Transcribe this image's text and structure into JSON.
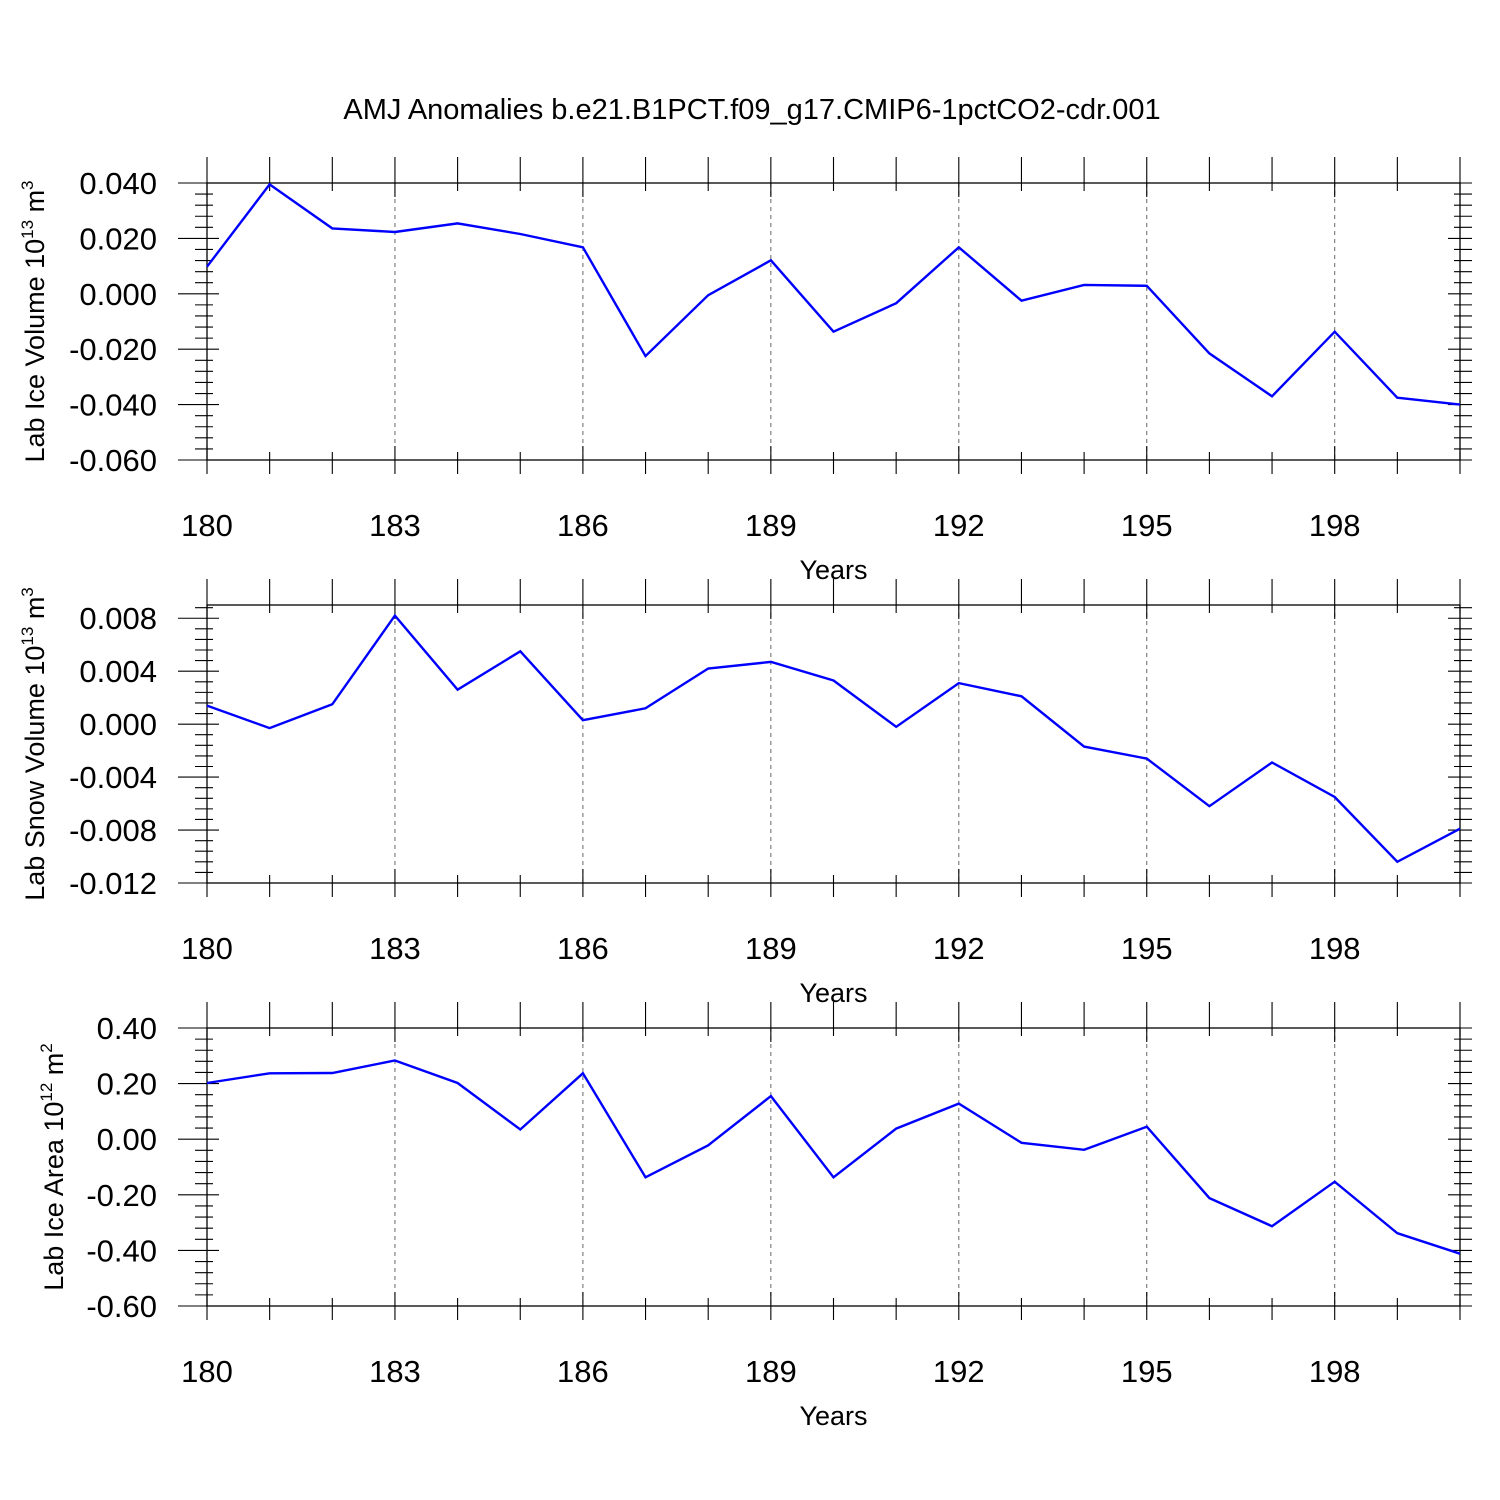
{
  "title": "AMJ Anomalies b.e21.B1PCT.f09_g17.CMIP6-1pctCO2-cdr.001",
  "colors": {
    "line": "#0000ff",
    "axes": "#000000",
    "grid": "#666666",
    "background": "#ffffff"
  },
  "chart_data": [
    {
      "type": "line",
      "ylabel": {
        "main": "Lab Ice Volume 10",
        "exp": "13",
        "unit": " m",
        "unit_exp": "3"
      },
      "xlabel": "Years",
      "xlim": [
        180,
        200
      ],
      "ylim": [
        -0.06,
        0.04
      ],
      "yticks": [
        0.04,
        0.02,
        0.0,
        -0.02,
        -0.04,
        -0.06
      ],
      "ytick_labels": [
        "0.040",
        "0.020",
        "0.000",
        "-0.020",
        "-0.040",
        "-0.060"
      ],
      "xticks": [
        180,
        183,
        186,
        189,
        192,
        195,
        198
      ],
      "xtick_labels": [
        "180",
        "183",
        "186",
        "189",
        "192",
        "195",
        "198"
      ],
      "x": [
        180,
        181,
        182,
        183,
        184,
        185,
        186,
        187,
        188,
        189,
        190,
        191,
        192,
        193,
        194,
        195,
        196,
        197,
        198,
        199,
        200
      ],
      "series": [
        {
          "name": "Lab Ice Volume",
          "values": [
            0.0098,
            0.0395,
            0.0236,
            0.0223,
            0.0254,
            0.0216,
            0.0168,
            -0.0225,
            -0.0005,
            0.0121,
            -0.0137,
            -0.0034,
            0.0168,
            -0.0025,
            0.0032,
            0.0029,
            -0.0215,
            -0.037,
            -0.0137,
            -0.0375,
            -0.04
          ]
        }
      ]
    },
    {
      "type": "line",
      "ylabel": {
        "main": "Lab Snow Volume 10",
        "exp": "13",
        "unit": " m",
        "unit_exp": "3"
      },
      "xlabel": "Years",
      "xlim": [
        180,
        200
      ],
      "ylim": [
        -0.012,
        0.009
      ],
      "yticks": [
        0.008,
        0.004,
        0.0,
        -0.004,
        -0.008,
        -0.012
      ],
      "ytick_labels": [
        "0.008",
        "0.004",
        "0.000",
        "-0.004",
        "-0.008",
        "-0.012"
      ],
      "xticks": [
        180,
        183,
        186,
        189,
        192,
        195,
        198
      ],
      "xtick_labels": [
        "180",
        "183",
        "186",
        "189",
        "192",
        "195",
        "198"
      ],
      "x": [
        180,
        181,
        182,
        183,
        184,
        185,
        186,
        187,
        188,
        189,
        190,
        191,
        192,
        193,
        194,
        195,
        196,
        197,
        198,
        199,
        200
      ],
      "series": [
        {
          "name": "Lab Snow Volume",
          "values": [
            0.0014,
            -0.0003,
            0.0015,
            0.0082,
            0.0026,
            0.0055,
            0.0003,
            0.0012,
            0.0042,
            0.0047,
            0.0033,
            -0.0002,
            0.0031,
            0.0021,
            -0.0017,
            -0.0026,
            -0.0062,
            -0.0029,
            -0.0055,
            -0.0104,
            -0.0079
          ]
        }
      ]
    },
    {
      "type": "line",
      "ylabel": {
        "main": "Lab Ice Area 10",
        "exp": "12",
        "unit": " m",
        "unit_exp": "2"
      },
      "xlabel": "Years",
      "xlim": [
        180,
        200
      ],
      "ylim": [
        -0.6,
        0.4
      ],
      "yticks": [
        0.4,
        0.2,
        0.0,
        -0.2,
        -0.4,
        -0.6
      ],
      "ytick_labels": [
        "0.40",
        "0.20",
        "0.00",
        "-0.20",
        "-0.40",
        "-0.60"
      ],
      "xticks": [
        180,
        183,
        186,
        189,
        192,
        195,
        198
      ],
      "xtick_labels": [
        "180",
        "183",
        "186",
        "189",
        "192",
        "195",
        "198"
      ],
      "x": [
        180,
        181,
        182,
        183,
        184,
        185,
        186,
        187,
        188,
        189,
        190,
        191,
        192,
        193,
        194,
        195,
        196,
        197,
        198,
        199,
        200
      ],
      "series": [
        {
          "name": "Lab Ice Area",
          "values": [
            0.202,
            0.237,
            0.238,
            0.283,
            0.202,
            0.035,
            0.237,
            -0.137,
            -0.022,
            0.155,
            -0.137,
            0.038,
            0.128,
            -0.013,
            -0.038,
            0.045,
            -0.212,
            -0.313,
            -0.153,
            -0.338,
            -0.412
          ]
        }
      ]
    }
  ]
}
